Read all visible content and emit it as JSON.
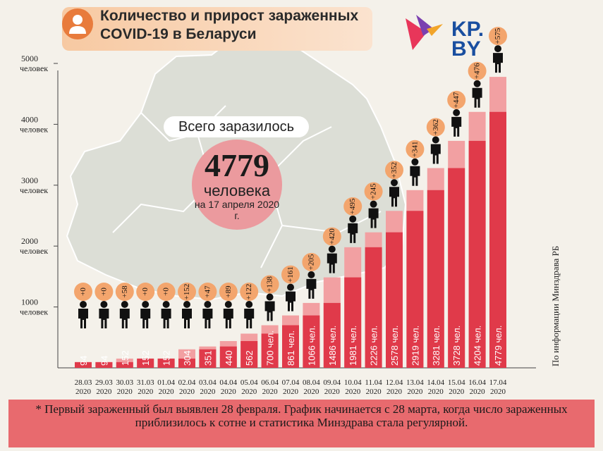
{
  "title": "Количество и прирост зараженных COVID-19 в Беларуси",
  "logo_text": "KP.BY",
  "total": {
    "label": "Всего заразилось",
    "number": "4779",
    "unit": "человека",
    "date": "на 17 апреля 2020 г."
  },
  "source": "По информации Минздрава РБ",
  "footnote": "* Первый зараженный был выявлен 28 февраля. График начинается с 28 марта, когда число зараженных приблизилось к сотне и статистика Минздрава стала регулярной.",
  "colors": {
    "bar_total": "#f2a0a2",
    "bar_previous": "#e03a4a",
    "increment_badge": "#f3a56d",
    "footer": "#e86a6e"
  },
  "chart_data": {
    "type": "bar",
    "title": "Количество и прирост зараженных COVID-19 в Беларуси",
    "x": [
      "28.03 2020",
      "29.03 2020",
      "30.03 2020",
      "31.03 2020",
      "01.04 2020",
      "02.04 2020",
      "03.04 2020",
      "04.04 2020",
      "05.04 2020",
      "06.04 2020",
      "07.04 2020",
      "08.04 2020",
      "09.04 2020",
      "10.04 2020",
      "11.04 2020",
      "12.04 2020",
      "13.04 2020",
      "14.04 2020",
      "15.04 2020",
      "16.04 2020",
      "17.04 2020"
    ],
    "series": [
      {
        "values": [
          94,
          94,
          152,
          152,
          152,
          304,
          351,
          440,
          562,
          700,
          861,
          1066,
          1486,
          1981,
          2226,
          2578,
          2919,
          3281,
          3728,
          4204,
          4779
        ]
      },
      {
        "values": [
          0,
          0,
          58,
          0,
          0,
          152,
          47,
          89,
          122,
          138,
          161,
          205,
          420,
          495,
          245,
          352,
          341,
          362,
          447,
          476,
          575
        ]
      }
    ],
    "bar_labels": [
      "94",
      "94",
      "152",
      "152",
      "152",
      "304",
      "351",
      "440",
      "562",
      "700 чел.",
      "861 чел.",
      "1066 чел.",
      "1486 чел.",
      "1981 чел.",
      "2226 чел.",
      "2578 чел.",
      "2919 чел.",
      "3281 чел.",
      "3728 чел.",
      "4204 чел.",
      "4779 чел."
    ],
    "increments": [
      "+0",
      "+0",
      "+58",
      "+0",
      "+0",
      "+152",
      "+47",
      "+89",
      "+122",
      "+138",
      "+161",
      "+205",
      "+420",
      "+495",
      "+245",
      "+352",
      "+341",
      "+362",
      "+447",
      "+476",
      "+575"
    ],
    "y_ticks": [
      {
        "value": 1000,
        "label": "1000",
        "unit": "человек"
      },
      {
        "value": 2000,
        "label": "2000",
        "unit": "человек"
      },
      {
        "value": 3000,
        "label": "3000",
        "unit": "человек"
      },
      {
        "value": 4000,
        "label": "4000",
        "unit": "человек"
      },
      {
        "value": 5000,
        "label": "5000",
        "unit": "человек"
      }
    ],
    "ylim": [
      0,
      5000
    ]
  }
}
